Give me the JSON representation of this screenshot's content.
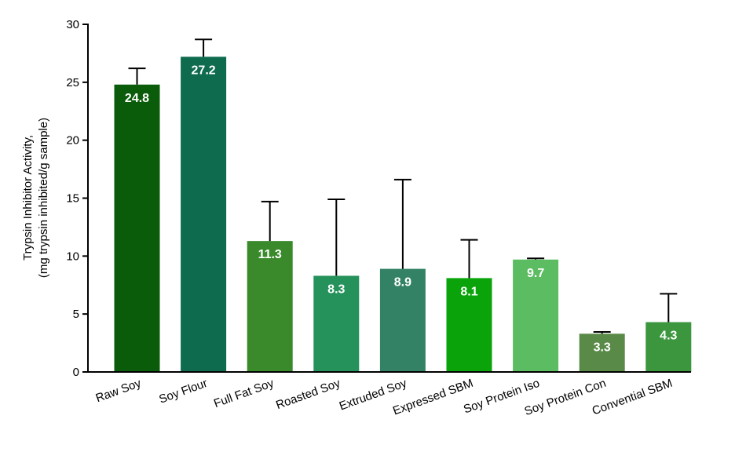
{
  "chart_data": {
    "type": "bar",
    "ylabel_line1": "Trypsin Inhibitor Activity,",
    "ylabel_line2": "(mg trypsin inhibited/g sample)",
    "ylim": [
      0,
      30
    ],
    "yticks": [
      0,
      5,
      10,
      15,
      20,
      25,
      30
    ],
    "grid": false,
    "categories": [
      "Raw Soy",
      "Soy Flour",
      "Full Fat Soy",
      "Roasted Soy",
      "Extruded Soy",
      "Expressed SBM",
      "Soy Protein Iso",
      "Soy Protein Con",
      "Convential SBM"
    ],
    "values": [
      24.8,
      27.2,
      11.3,
      8.3,
      8.9,
      8.1,
      9.7,
      3.3,
      4.3
    ],
    "value_labels": [
      "24.8",
      "27.2",
      "11.3",
      "8.3",
      "8.9",
      "8.1",
      "9.7",
      "3.3",
      "4.3"
    ],
    "error_upper": [
      26.2,
      28.7,
      14.7,
      14.9,
      16.6,
      11.4,
      9.8,
      3.45,
      6.75
    ],
    "colors": [
      "#0a5c0a",
      "#0e6b4e",
      "#3a8a2c",
      "#24925a",
      "#348266",
      "#0aa40a",
      "#5cbc62",
      "#5a8a48",
      "#3b963e"
    ]
  }
}
